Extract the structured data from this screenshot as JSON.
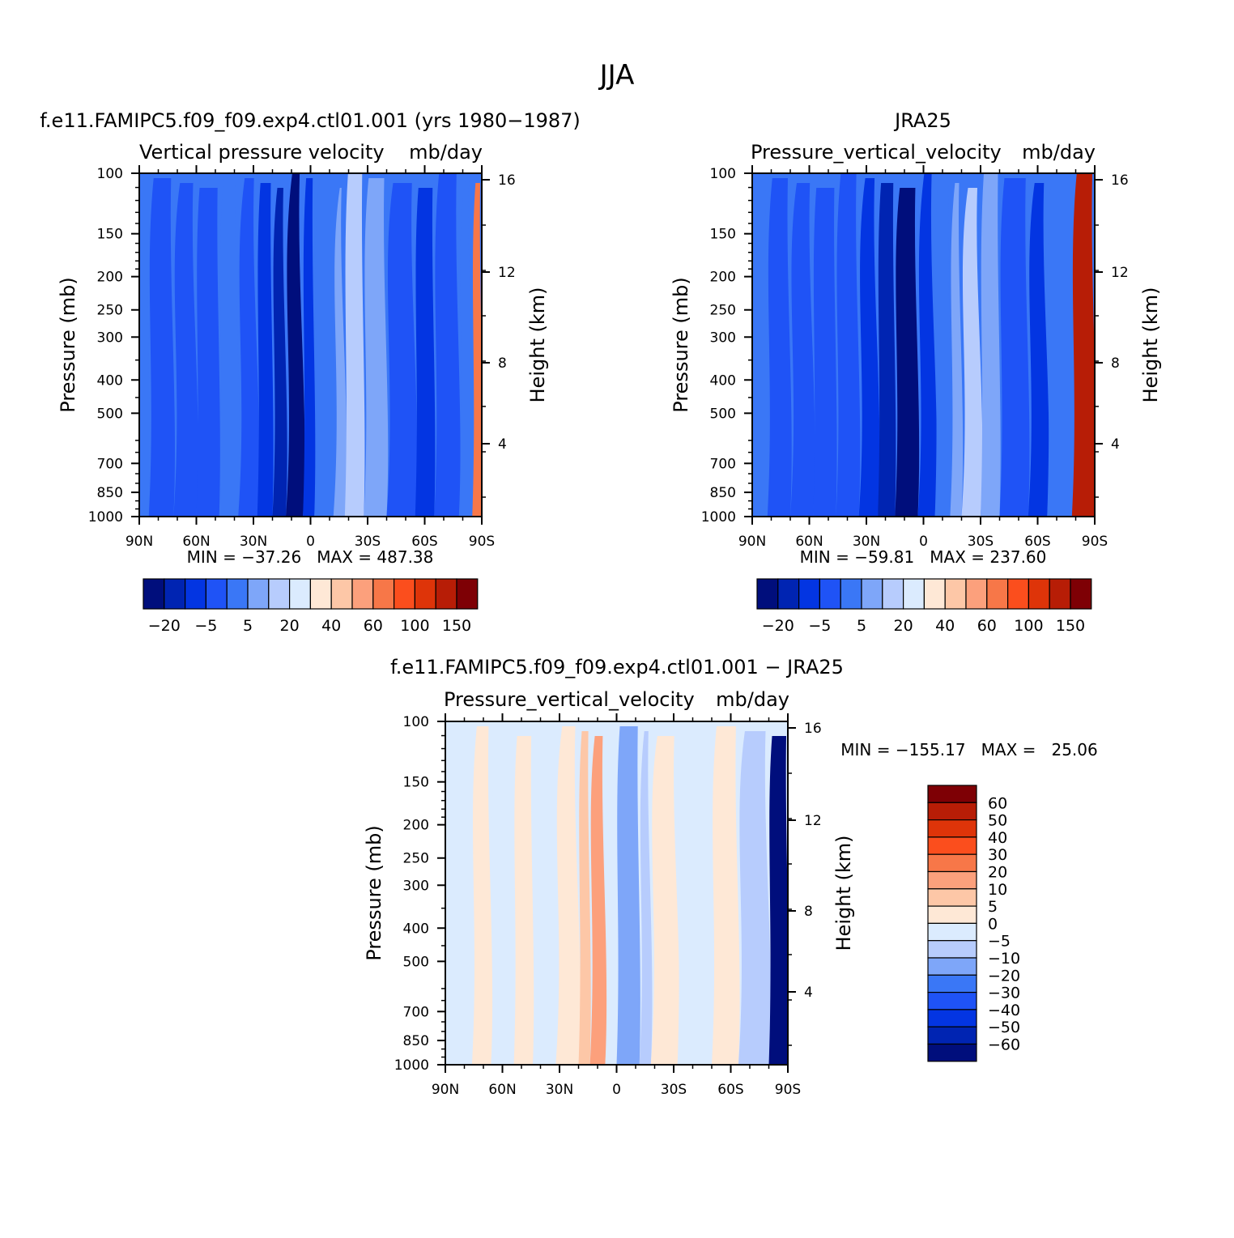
{
  "figure": {
    "title": "JJA"
  },
  "palettes": {
    "abs": [
      "#000e7c",
      "#0024b2",
      "#0335e2",
      "#1f53f6",
      "#3a77f6",
      "#7ea6f9",
      "#b7ccfd",
      "#dbebfe",
      "#fee8d6",
      "#fdc7a7",
      "#fca07c",
      "#f77748",
      "#fb4e1d",
      "#de3409",
      "#b71d06",
      "#7e0005"
    ],
    "diff": [
      "#000e7c",
      "#0024b2",
      "#0335e2",
      "#1f53f6",
      "#3a77f6",
      "#7ea6f9",
      "#b7ccfd",
      "#dbebfe",
      "#fee8d6",
      "#fdc7a7",
      "#fca07c",
      "#f77748",
      "#fb4e1d",
      "#de3409",
      "#b71d06",
      "#7e0005"
    ]
  },
  "axes": {
    "pressure_ticks": [
      "100",
      "150",
      "200",
      "250",
      "300",
      "400",
      "500",
      "700",
      "850",
      "1000"
    ],
    "height_ticks": [
      "16",
      "12",
      "8",
      "4"
    ],
    "lat_ticks": [
      "90N",
      "60N",
      "30N",
      "0",
      "30S",
      "60S",
      "90S"
    ],
    "ylabel": "Pressure (mb)",
    "ylabel_right": "Height (km)"
  },
  "panels": {
    "model": {
      "title": "f.e11.FAMIPC5.f09_f09.exp4.ctl01.001 (yrs 1980−1987)",
      "subtitle_left": "Vertical pressure velocity",
      "subtitle_right": "mb/day",
      "minmax": "MIN = −37.26   MAX = 487.38",
      "colorbar_labels": [
        "−20",
        "−5",
        "5",
        "20",
        "40",
        "60",
        "100",
        "150"
      ]
    },
    "obs": {
      "title": "JRA25",
      "subtitle_left": "Pressure_vertical_velocity",
      "subtitle_right": "mb/day",
      "minmax": "MIN = −59.81   MAX = 237.60",
      "colorbar_labels": [
        "−20",
        "−5",
        "5",
        "20",
        "40",
        "60",
        "100",
        "150"
      ]
    },
    "diff": {
      "title": "f.e11.FAMIPC5.f09_f09.exp4.ctl01.001 − JRA25",
      "subtitle_left": "Pressure_vertical_velocity",
      "subtitle_right": "mb/day",
      "minmax": "MIN = −155.17   MAX =   25.06",
      "colorbar_labels": [
        "60",
        "50",
        "40",
        "30",
        "20",
        "10",
        "5",
        "0",
        "−5",
        "−10",
        "−20",
        "−30",
        "−40",
        "−50",
        "−60"
      ]
    }
  },
  "chart_data": [
    {
      "type": "heatmap",
      "title": "f.e11.FAMIPC5.f09_f09.exp4.ctl01.001 (yrs 1980−1987)",
      "variable": "Vertical pressure velocity",
      "units": "mb/day",
      "xlabel": "",
      "ylabel": "Pressure (mb)",
      "ylabel_right": "Height (km)",
      "x_range": [
        "90N",
        "90S"
      ],
      "y_range_mb": [
        1000,
        100
      ],
      "y_scale": "log",
      "min": -37.26,
      "max": 487.38,
      "levels": [
        -30,
        -20,
        -10,
        -5,
        0,
        5,
        10,
        20,
        30,
        40,
        50,
        60,
        80,
        100,
        120,
        150
      ],
      "bands": [
        {
          "from_lat": 90,
          "to_lat": 85,
          "level": 0
        },
        {
          "from_lat": 85,
          "to_lat": 72,
          "level": -5
        },
        {
          "from_lat": 72,
          "to_lat": 60,
          "level": -5
        },
        {
          "from_lat": 60,
          "to_lat": 48,
          "level": -5
        },
        {
          "from_lat": 48,
          "to_lat": 38,
          "level": 0
        },
        {
          "from_lat": 38,
          "to_lat": 28,
          "level": -5
        },
        {
          "from_lat": 28,
          "to_lat": 20,
          "level": -10
        },
        {
          "from_lat": 20,
          "to_lat": 13,
          "level": -20
        },
        {
          "from_lat": 13,
          "to_lat": 4,
          "level": -30
        },
        {
          "from_lat": 4,
          "to_lat": -2,
          "level": -10
        },
        {
          "from_lat": -2,
          "to_lat": -12,
          "level": 0
        },
        {
          "from_lat": -12,
          "to_lat": -18,
          "level": 5
        },
        {
          "from_lat": -18,
          "to_lat": -28,
          "level": 10
        },
        {
          "from_lat": -28,
          "to_lat": -40,
          "level": 5
        },
        {
          "from_lat": -40,
          "to_lat": -55,
          "level": -5
        },
        {
          "from_lat": -55,
          "to_lat": -65,
          "level": -10
        },
        {
          "from_lat": -65,
          "to_lat": -78,
          "level": -5
        },
        {
          "from_lat": -78,
          "to_lat": -85,
          "level": 0
        },
        {
          "from_lat": -85,
          "to_lat": -90,
          "level": 60
        }
      ]
    },
    {
      "type": "heatmap",
      "title": "JRA25",
      "variable": "Pressure_vertical_velocity",
      "units": "mb/day",
      "xlabel": "",
      "ylabel": "Pressure (mb)",
      "ylabel_right": "Height (km)",
      "x_range": [
        "90N",
        "90S"
      ],
      "y_range_mb": [
        1000,
        100
      ],
      "y_scale": "log",
      "min": -59.81,
      "max": 237.6,
      "levels": [
        -30,
        -20,
        -10,
        -5,
        0,
        5,
        10,
        20,
        30,
        40,
        50,
        60,
        80,
        100,
        120,
        150
      ],
      "bands": [
        {
          "from_lat": 90,
          "to_lat": 82,
          "level": 0
        },
        {
          "from_lat": 82,
          "to_lat": 70,
          "level": -5
        },
        {
          "from_lat": 70,
          "to_lat": 58,
          "level": -5
        },
        {
          "from_lat": 58,
          "to_lat": 46,
          "level": -5
        },
        {
          "from_lat": 46,
          "to_lat": 34,
          "level": -5
        },
        {
          "from_lat": 34,
          "to_lat": 24,
          "level": -10
        },
        {
          "from_lat": 24,
          "to_lat": 15,
          "level": -20
        },
        {
          "from_lat": 15,
          "to_lat": 3,
          "level": -30
        },
        {
          "from_lat": 3,
          "to_lat": -6,
          "level": -10
        },
        {
          "from_lat": -6,
          "to_lat": -14,
          "level": 0
        },
        {
          "from_lat": -14,
          "to_lat": -20,
          "level": 5
        },
        {
          "from_lat": -20,
          "to_lat": -30,
          "level": 10
        },
        {
          "from_lat": -30,
          "to_lat": -40,
          "level": 5
        },
        {
          "from_lat": -40,
          "to_lat": -55,
          "level": -5
        },
        {
          "from_lat": -55,
          "to_lat": -65,
          "level": -10
        },
        {
          "from_lat": -65,
          "to_lat": -78,
          "level": 0
        },
        {
          "from_lat": -78,
          "to_lat": -90,
          "level": 120
        }
      ]
    },
    {
      "type": "heatmap",
      "title": "f.e11.FAMIPC5.f09_f09.exp4.ctl01.001 − JRA25",
      "variable": "Pressure_vertical_velocity",
      "units": "mb/day",
      "xlabel": "",
      "ylabel": "Pressure (mb)",
      "ylabel_right": "Height (km)",
      "x_range": [
        "90N",
        "90S"
      ],
      "y_range_mb": [
        1000,
        100
      ],
      "y_scale": "log",
      "min": -155.17,
      "max": 25.06,
      "levels": [
        -60,
        -50,
        -40,
        -30,
        -20,
        -10,
        -5,
        0,
        5,
        10,
        20,
        30,
        40,
        50,
        60
      ],
      "bands": [
        {
          "from_lat": 90,
          "to_lat": 76,
          "level": 0
        },
        {
          "from_lat": 76,
          "to_lat": 66,
          "level": 5
        },
        {
          "from_lat": 66,
          "to_lat": 54,
          "level": 0
        },
        {
          "from_lat": 54,
          "to_lat": 44,
          "level": 5
        },
        {
          "from_lat": 44,
          "to_lat": 32,
          "level": 0
        },
        {
          "from_lat": 32,
          "to_lat": 20,
          "level": 5
        },
        {
          "from_lat": 20,
          "to_lat": 14,
          "level": 10
        },
        {
          "from_lat": 14,
          "to_lat": 6,
          "level": 20
        },
        {
          "from_lat": 6,
          "to_lat": 0,
          "level": 0
        },
        {
          "from_lat": 0,
          "to_lat": -12,
          "level": -10
        },
        {
          "from_lat": -12,
          "to_lat": -18,
          "level": -5
        },
        {
          "from_lat": -18,
          "to_lat": -32,
          "level": 5
        },
        {
          "from_lat": -32,
          "to_lat": -50,
          "level": 0
        },
        {
          "from_lat": -50,
          "to_lat": -64,
          "level": 5
        },
        {
          "from_lat": -64,
          "to_lat": -80,
          "level": -5
        },
        {
          "from_lat": -80,
          "to_lat": -90,
          "level": -60
        }
      ]
    }
  ]
}
